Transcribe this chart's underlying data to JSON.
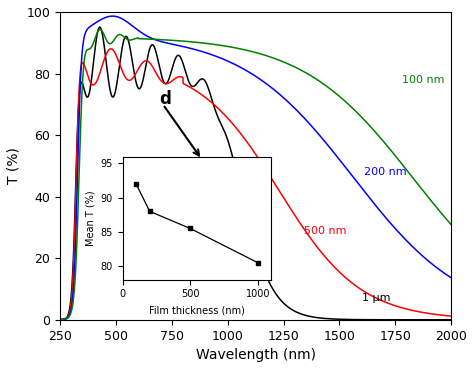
{
  "title": "",
  "xlabel": "Wavelength (nm)",
  "ylabel": "T (%)",
  "xlim": [
    250,
    2000
  ],
  "ylim": [
    0,
    100
  ],
  "xticks": [
    250,
    500,
    750,
    1000,
    1250,
    1500,
    1750,
    2000
  ],
  "yticks": [
    0,
    20,
    40,
    60,
    80,
    100
  ],
  "line_colors": [
    "black",
    "red",
    "blue",
    "green"
  ],
  "line_labels": [
    "1 μm",
    "500 nm",
    "200 nm",
    "100 nm"
  ],
  "inset": {
    "xlim": [
      0,
      1100
    ],
    "ylim": [
      78,
      96
    ],
    "xticks": [
      0,
      500,
      1000
    ],
    "yticks": [
      80,
      85,
      90,
      95
    ],
    "xlabel": "Film thickness (nm)",
    "ylabel": "Mean T (%)",
    "data_x": [
      100,
      200,
      500,
      1000
    ],
    "data_y": [
      92.0,
      88.0,
      85.5,
      80.5
    ]
  }
}
